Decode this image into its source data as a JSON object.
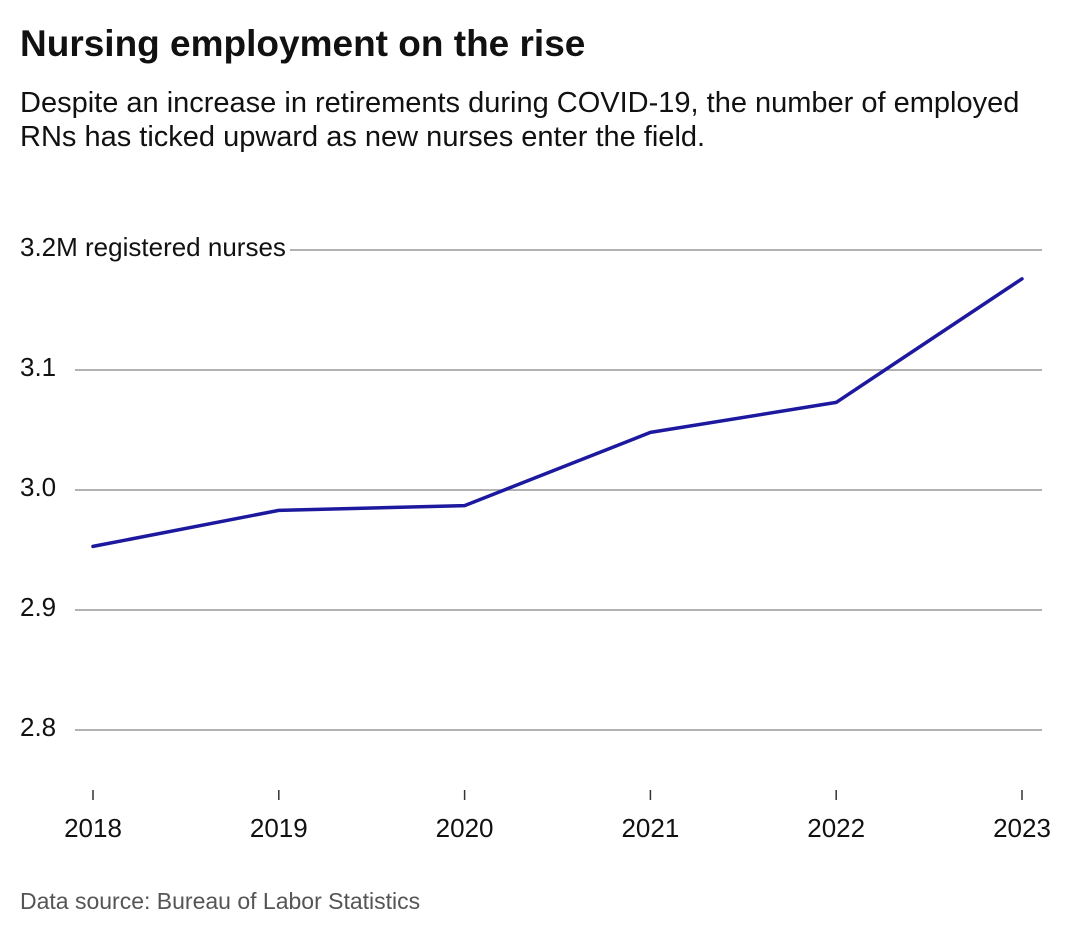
{
  "chart_data": {
    "type": "line",
    "title": "Nursing employment on the rise",
    "subtitle": "Despite an increase in retirements during COVID-19, the number of employed RNs has ticked upward as new nurses enter the field.",
    "source": "Data source: Bureau of Labor Statistics",
    "categories": [
      "2018",
      "2019",
      "2020",
      "2021",
      "2022",
      "2023"
    ],
    "series": [
      {
        "name": "Registered nurses",
        "color": "#1d199e",
        "values": [
          2.953,
          2.983,
          2.987,
          3.048,
          3.073,
          3.176
        ]
      }
    ],
    "ylim": [
      2.75,
      3.2
    ],
    "yticks": [
      2.8,
      2.9,
      {
        "value": 3,
        "label": "3.0"
      },
      3.1,
      {
        "value": 3.2,
        "label": "3.2M registered nurses"
      }
    ],
    "grid": true
  }
}
